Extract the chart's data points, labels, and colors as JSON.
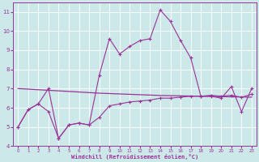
{
  "x": [
    0,
    1,
    2,
    3,
    4,
    5,
    6,
    7,
    8,
    9,
    10,
    11,
    12,
    13,
    14,
    15,
    16,
    17,
    18,
    19,
    20,
    21,
    22,
    23
  ],
  "line_spiky": [
    5.0,
    5.9,
    6.2,
    7.0,
    4.4,
    5.1,
    5.2,
    5.1,
    7.7,
    9.6,
    8.8,
    9.2,
    9.5,
    9.6,
    11.1,
    10.5,
    9.5,
    8.6,
    6.6,
    6.6,
    6.5,
    7.1,
    5.8,
    7.0
  ],
  "line_flat": [
    7.0,
    6.97,
    6.94,
    6.91,
    6.88,
    6.85,
    6.82,
    6.79,
    6.76,
    6.74,
    6.72,
    6.7,
    6.68,
    6.66,
    6.64,
    6.63,
    6.62,
    6.61,
    6.6,
    6.59,
    6.58,
    6.57,
    6.56,
    6.55
  ],
  "line_smooth": [
    5.0,
    5.9,
    6.2,
    5.8,
    4.4,
    5.1,
    5.2,
    5.1,
    5.5,
    6.1,
    6.2,
    6.3,
    6.35,
    6.4,
    6.5,
    6.5,
    6.55,
    6.6,
    6.6,
    6.65,
    6.6,
    6.65,
    6.55,
    6.7
  ],
  "color": "#993399",
  "bg_color": "#cce8e8",
  "grid_color": "#aacccc",
  "xlabel": "Windchill (Refroidissement éolien,°C)",
  "ylim": [
    4,
    11.5
  ],
  "xlim": [
    -0.5,
    23.5
  ],
  "yticks": [
    4,
    5,
    6,
    7,
    8,
    9,
    10,
    11
  ],
  "xticks": [
    0,
    1,
    2,
    3,
    4,
    5,
    6,
    7,
    8,
    9,
    10,
    11,
    12,
    13,
    14,
    15,
    16,
    17,
    18,
    19,
    20,
    21,
    22,
    23
  ]
}
